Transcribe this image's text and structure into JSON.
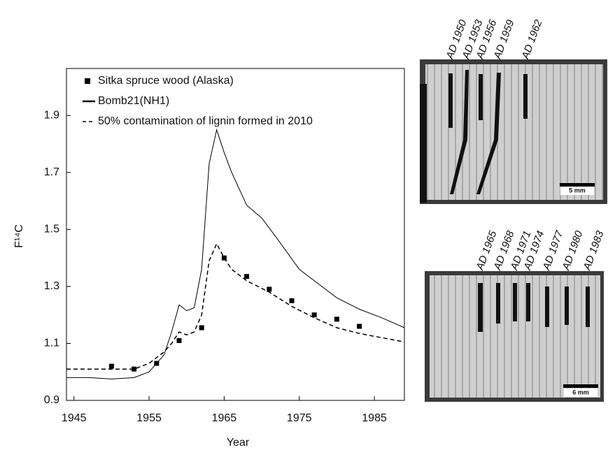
{
  "chart_data": {
    "type": "line",
    "xlabel": "Year",
    "ylabel": "F¹⁴C",
    "xlim": [
      1944,
      1989
    ],
    "xticks": [
      1945,
      1955,
      1965,
      1975,
      1985
    ],
    "ylim": [
      0.9,
      2.065
    ],
    "yticks": [
      0.9,
      1.1,
      1.3,
      1.5,
      1.7,
      1.9
    ],
    "grid": false,
    "series": [
      {
        "name": "Sitka spruce wood (Alaska)",
        "style": "marker",
        "color": "#000000",
        "x": [
          1950,
          1953,
          1956,
          1959,
          1962,
          1965,
          1968,
          1971,
          1974,
          1977,
          1980,
          1983
        ],
        "values": [
          1.02,
          1.01,
          1.03,
          1.11,
          1.155,
          1.4,
          1.335,
          1.29,
          1.25,
          1.2,
          1.185,
          1.16
        ]
      },
      {
        "name": "Bomb21(NH1)",
        "style": "solid",
        "color": "#000000",
        "x": [
          1944,
          1947,
          1950,
          1953,
          1955,
          1957,
          1958,
          1959,
          1960,
          1961,
          1962,
          1963,
          1964,
          1965,
          1966,
          1968,
          1970,
          1972,
          1975,
          1978,
          1980,
          1983,
          1986,
          1989
        ],
        "values": [
          0.98,
          0.98,
          0.975,
          0.98,
          1.0,
          1.06,
          1.14,
          1.235,
          1.215,
          1.225,
          1.36,
          1.73,
          1.85,
          1.77,
          1.7,
          1.585,
          1.54,
          1.47,
          1.36,
          1.3,
          1.26,
          1.22,
          1.19,
          1.155
        ]
      },
      {
        "name": "50% contamination of lignin formed in 2010",
        "style": "dashed",
        "color": "#000000",
        "x": [
          1944,
          1950,
          1953,
          1955,
          1957,
          1958,
          1959,
          1960,
          1961,
          1962,
          1963,
          1964,
          1965,
          1966,
          1968,
          1971,
          1974,
          1977,
          1980,
          1983,
          1986,
          1989
        ],
        "values": [
          1.01,
          1.01,
          1.01,
          1.03,
          1.07,
          1.1,
          1.14,
          1.13,
          1.14,
          1.2,
          1.39,
          1.45,
          1.4,
          1.36,
          1.32,
          1.28,
          1.23,
          1.19,
          1.155,
          1.135,
          1.12,
          1.105
        ]
      }
    ]
  },
  "photos": [
    {
      "labels": [
        "AD 1950",
        "AD 1953",
        "AD 1956",
        "AD 1959",
        "AD 1962"
      ],
      "scale": "5 mm"
    },
    {
      "labels": [
        "AD 1965",
        "AD 1968",
        "AD 1971",
        "AD 1974",
        "AD 1977",
        "AD 1980",
        "AD 1983"
      ],
      "scale": "6 mm"
    }
  ]
}
